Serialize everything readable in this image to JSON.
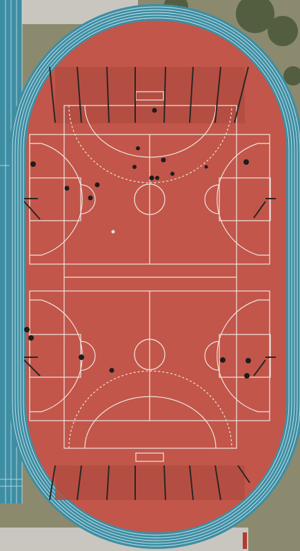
{
  "image": {
    "subject": "aerial-sports-complex",
    "colors": {
      "grass": "#8b8a6e",
      "grass_dark": "#5e6b4c",
      "track": "#3e8ea3",
      "track_line": "#cfe6ee",
      "court": "#c2564a",
      "court_dark": "#b24c42",
      "court_line": "#f1e6e0",
      "paving": "#c9c6c0",
      "fence": "#2b2522",
      "player": "#1f1c1c"
    }
  }
}
